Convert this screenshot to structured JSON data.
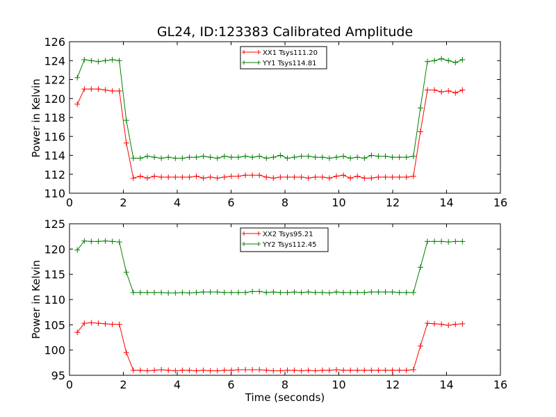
{
  "chart_data": [
    {
      "type": "line",
      "title": "GL24, ID:123383 Calibrated Amplitude",
      "xlabel": "",
      "ylabel": "Power in Kelvin",
      "xlim": [
        0,
        16
      ],
      "ylim": [
        110,
        126
      ],
      "xticks": [
        0,
        2,
        4,
        6,
        8,
        10,
        12,
        14,
        16
      ],
      "yticks": [
        110,
        112,
        114,
        116,
        118,
        120,
        122,
        124,
        126
      ],
      "legend_position": "top-center",
      "grid": false,
      "x": [
        0.29,
        0.55,
        0.81,
        1.07,
        1.33,
        1.59,
        1.85,
        2.11,
        2.37,
        2.63,
        2.89,
        3.15,
        3.41,
        3.67,
        3.93,
        4.19,
        4.45,
        4.71,
        4.97,
        5.23,
        5.49,
        5.75,
        6.01,
        6.27,
        6.53,
        6.79,
        7.05,
        7.31,
        7.57,
        7.83,
        8.09,
        8.35,
        8.61,
        8.87,
        9.13,
        9.39,
        9.65,
        9.91,
        10.17,
        10.43,
        10.69,
        10.95,
        11.21,
        11.47,
        11.73,
        11.99,
        12.25,
        12.51,
        12.77,
        13.03,
        13.29,
        13.55,
        13.81,
        14.07,
        14.33,
        14.59
      ],
      "series": [
        {
          "name": "XX1 Tsys111.20",
          "color": "#ff0000",
          "values": [
            119.4,
            121.0,
            121.0,
            121.0,
            120.9,
            120.8,
            120.8,
            115.3,
            111.6,
            111.8,
            111.6,
            111.8,
            111.7,
            111.7,
            111.7,
            111.7,
            111.7,
            111.8,
            111.6,
            111.7,
            111.6,
            111.7,
            111.8,
            111.8,
            111.9,
            111.9,
            111.9,
            111.7,
            111.6,
            111.7,
            111.7,
            111.7,
            111.7,
            111.6,
            111.7,
            111.7,
            111.6,
            111.8,
            111.9,
            111.6,
            111.8,
            111.6,
            111.6,
            111.7,
            111.7,
            111.7,
            111.7,
            111.7,
            111.8,
            116.5,
            120.9,
            120.9,
            120.7,
            120.8,
            120.6,
            120.9
          ]
        },
        {
          "name": "YY1 Tsys114.81",
          "color": "#008000",
          "values": [
            122.2,
            124.1,
            124.0,
            123.9,
            124.0,
            124.1,
            124.0,
            117.7,
            113.7,
            113.7,
            113.9,
            113.8,
            113.7,
            113.8,
            113.7,
            113.7,
            113.8,
            113.8,
            113.9,
            113.8,
            113.7,
            113.9,
            113.8,
            113.8,
            113.9,
            113.8,
            113.9,
            113.7,
            113.8,
            114.0,
            113.7,
            113.8,
            113.9,
            113.9,
            113.8,
            113.8,
            113.7,
            113.8,
            113.9,
            113.7,
            113.8,
            113.7,
            114.0,
            113.9,
            113.9,
            113.8,
            113.8,
            113.8,
            113.9,
            119.0,
            123.9,
            124.0,
            124.2,
            124.0,
            123.8,
            124.1
          ]
        }
      ]
    },
    {
      "type": "line",
      "title": "",
      "xlabel": "Time (seconds)",
      "ylabel": "Power in Kelvin",
      "xlim": [
        0,
        16
      ],
      "ylim": [
        95,
        125
      ],
      "xticks": [
        0,
        2,
        4,
        6,
        8,
        10,
        12,
        14,
        16
      ],
      "yticks": [
        95,
        100,
        105,
        110,
        115,
        120,
        125
      ],
      "legend_position": "top-center",
      "grid": false,
      "x": [
        0.29,
        0.55,
        0.81,
        1.07,
        1.33,
        1.59,
        1.85,
        2.11,
        2.37,
        2.63,
        2.89,
        3.15,
        3.41,
        3.67,
        3.93,
        4.19,
        4.45,
        4.71,
        4.97,
        5.23,
        5.49,
        5.75,
        6.01,
        6.27,
        6.53,
        6.79,
        7.05,
        7.31,
        7.57,
        7.83,
        8.09,
        8.35,
        8.61,
        8.87,
        9.13,
        9.39,
        9.65,
        9.91,
        10.17,
        10.43,
        10.69,
        10.95,
        11.21,
        11.47,
        11.73,
        11.99,
        12.25,
        12.51,
        12.77,
        13.03,
        13.29,
        13.55,
        13.81,
        14.07,
        14.33,
        14.59
      ],
      "series": [
        {
          "name": "XX2 Tsys95.21",
          "color": "#ff0000",
          "values": [
            103.5,
            105.3,
            105.4,
            105.3,
            105.2,
            105.1,
            105.1,
            99.5,
            96.0,
            96.0,
            95.9,
            96.0,
            96.1,
            96.0,
            95.9,
            96.0,
            96.0,
            95.9,
            96.0,
            95.9,
            95.9,
            96.0,
            96.0,
            96.1,
            96.1,
            96.1,
            96.1,
            96.0,
            95.9,
            95.9,
            96.0,
            96.0,
            95.9,
            96.0,
            95.9,
            96.0,
            96.0,
            96.1,
            96.0,
            96.0,
            96.0,
            96.0,
            96.0,
            96.0,
            96.0,
            96.0,
            96.0,
            96.0,
            96.1,
            100.8,
            105.3,
            105.2,
            105.1,
            104.9,
            105.1,
            105.2
          ]
        },
        {
          "name": "YY2 Tsys112.45",
          "color": "#008000",
          "values": [
            119.8,
            121.6,
            121.5,
            121.5,
            121.6,
            121.5,
            121.4,
            115.4,
            111.4,
            111.4,
            111.4,
            111.4,
            111.4,
            111.3,
            111.3,
            111.4,
            111.3,
            111.4,
            111.5,
            111.5,
            111.5,
            111.4,
            111.4,
            111.4,
            111.4,
            111.6,
            111.6,
            111.4,
            111.5,
            111.4,
            111.4,
            111.5,
            111.4,
            111.5,
            111.4,
            111.4,
            111.3,
            111.5,
            111.4,
            111.4,
            111.4,
            111.4,
            111.5,
            111.5,
            111.5,
            111.5,
            111.4,
            111.4,
            111.4,
            116.4,
            121.5,
            121.5,
            121.5,
            121.4,
            121.5,
            121.5
          ]
        }
      ]
    }
  ]
}
